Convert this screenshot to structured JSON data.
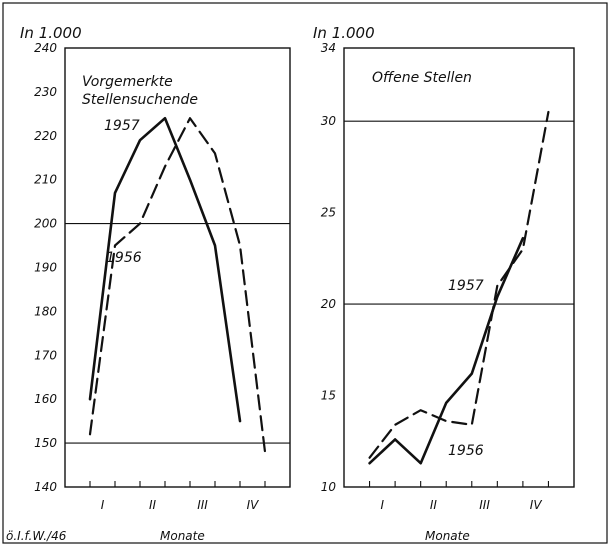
{
  "footer": {
    "source": "ö.I.f.W./46"
  },
  "chart_data": [
    {
      "type": "line",
      "title_lines": [
        "Vorgemerkte",
        "Stellensuchende"
      ],
      "unit_label": "In 1.000",
      "xlabel": "Monate",
      "x_ticks": [
        "I",
        "II",
        "III",
        "IV"
      ],
      "ylim": [
        140,
        240
      ],
      "y_ticks": [
        "140",
        "150",
        "160",
        "170",
        "180",
        "190",
        "200",
        "210",
        "220",
        "230",
        "240"
      ],
      "reference_lines": [
        150,
        200
      ],
      "series": [
        {
          "name": "1957",
          "style": "solid",
          "x": [
            0.5,
            1.0,
            1.5,
            2.0,
            2.5,
            3.0,
            3.5
          ],
          "y": [
            160,
            207,
            219,
            224,
            210,
            195,
            155
          ]
        },
        {
          "name": "1956",
          "style": "dashed",
          "x": [
            0.5,
            1.0,
            1.5,
            2.0,
            2.5,
            3.0,
            3.5,
            4.0
          ],
          "y": [
            152,
            195,
            200,
            213,
            224,
            216,
            195,
            148
          ]
        }
      ]
    },
    {
      "type": "line",
      "title_lines": [
        "Offene Stellen"
      ],
      "unit_label": "In 1.000",
      "xlabel": "Monate",
      "x_ticks": [
        "I",
        "II",
        "III",
        "IV"
      ],
      "ylim": [
        10,
        34
      ],
      "y_ticks": [
        "10",
        "15",
        "20",
        "25",
        "30",
        "34"
      ],
      "reference_lines": [
        20,
        30
      ],
      "series": [
        {
          "name": "1957",
          "style": "solid",
          "x": [
            0.5,
            1.0,
            1.5,
            2.0,
            2.5,
            3.0,
            3.5
          ],
          "y": [
            11.3,
            12.6,
            11.3,
            14.6,
            16.2,
            20.4,
            23.6
          ]
        },
        {
          "name": "1956",
          "style": "dashed",
          "x": [
            0.5,
            1.0,
            1.5,
            2.0,
            2.5,
            3.0,
            3.5,
            4.0
          ],
          "y": [
            11.6,
            13.4,
            14.2,
            13.6,
            13.4,
            21.0,
            23.0,
            30.5
          ]
        }
      ]
    }
  ]
}
